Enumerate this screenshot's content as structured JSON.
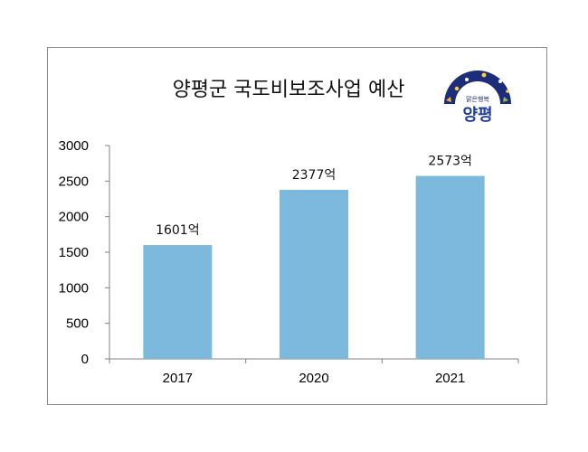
{
  "chart_data": {
    "type": "bar",
    "title": "양평군 국도비보조사업 예산",
    "categories": [
      "2017",
      "2020",
      "2021"
    ],
    "values": [
      1601,
      2377,
      2573
    ],
    "data_labels": [
      "1601억",
      "2377억",
      "2573억"
    ],
    "ylim": [
      0,
      3000
    ],
    "yticks": [
      0,
      500,
      1000,
      1500,
      2000,
      2500,
      3000
    ],
    "xlabel": "",
    "ylabel": "",
    "grid": false,
    "bar_color": "#7db9dd"
  },
  "logo": {
    "tagline": "맑은행복",
    "name": "양평",
    "arc_color": "#1d2d7a",
    "name_color": "#1f3d9a"
  }
}
